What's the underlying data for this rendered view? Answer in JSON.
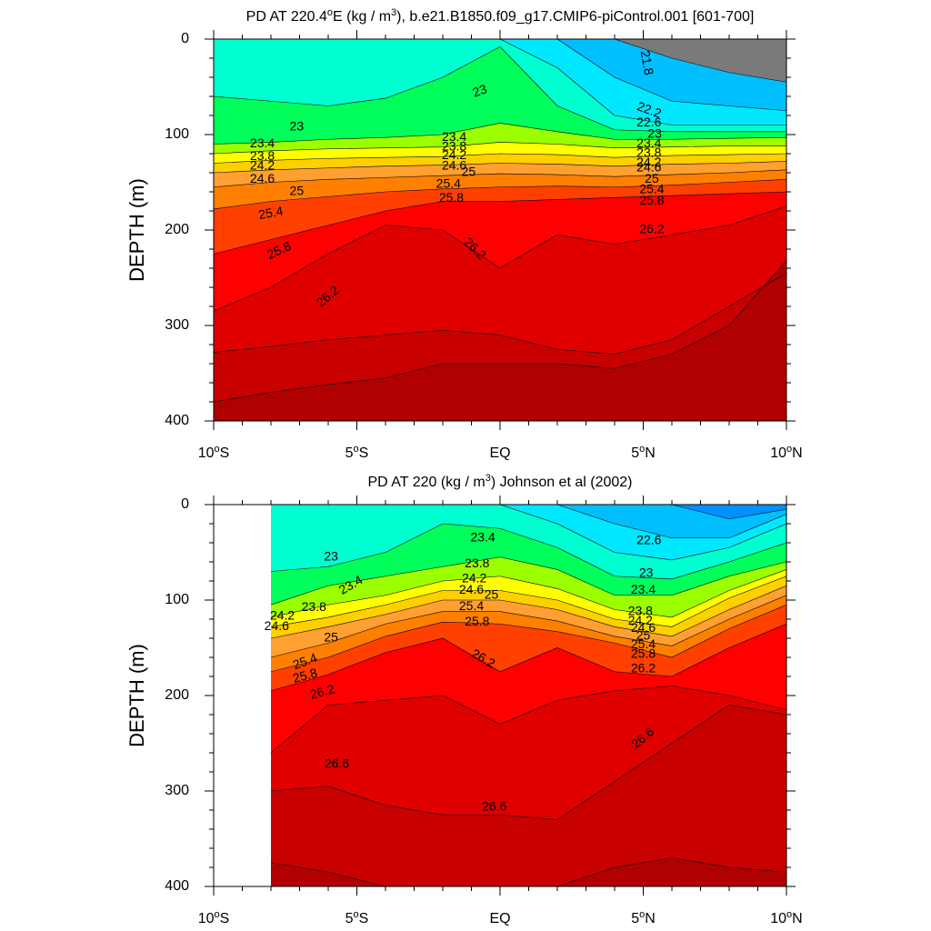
{
  "colors": {
    "scale": [
      "#7a7a7a",
      "#aaaaaa",
      "#ff00ff",
      "#c700e6",
      "#7a00e0",
      "#0000ff",
      "#0050ff",
      "#0090ff",
      "#00bfff",
      "#00e8ff",
      "#00ffd0",
      "#00ff5a",
      "#9bff00",
      "#ffff00",
      "#ffd000",
      "#ffa030",
      "#ff8000",
      "#ff4000",
      "#ff0000",
      "#e00000",
      "#c80000",
      "#b00000"
    ],
    "line": "#000000"
  },
  "chart_data": [
    {
      "type": "contour",
      "title_parts": [
        "PD AT 220.4",
        "o",
        "E (kg / m",
        "3",
        "), b.e21.B1850.f09_g17.CMIP6-piControl.001 [601-700]"
      ],
      "ylabel": "DEPTH (m)",
      "xlim": [
        -10,
        10
      ],
      "ylim": [
        400,
        0
      ],
      "xticks": [
        {
          "v": -10,
          "parts": [
            "10",
            "o",
            "S"
          ]
        },
        {
          "v": -5,
          "parts": [
            "5",
            "o",
            "S"
          ]
        },
        {
          "v": 0,
          "parts": [
            "EQ",
            "",
            ""
          ]
        },
        {
          "v": 5,
          "parts": [
            "5",
            "o",
            "N"
          ]
        },
        {
          "v": 10,
          "parts": [
            "10",
            "o",
            "N"
          ]
        }
      ],
      "yticks": [
        "0",
        "100",
        "200",
        "300",
        "400"
      ],
      "x_start": -10,
      "x_nodes": [
        -10,
        -8,
        -6,
        -4,
        -2,
        0,
        2,
        4,
        6,
        8,
        10
      ],
      "levels": [
        {
          "v": 21.8,
          "d": [
            0,
            0,
            0,
            0,
            0,
            0,
            0,
            0,
            20,
            35,
            45
          ]
        },
        {
          "v": 22.2,
          "d": [
            0,
            0,
            0,
            0,
            0,
            0,
            0,
            40,
            65,
            70,
            75
          ]
        },
        {
          "v": 22.6,
          "d": [
            0,
            0,
            0,
            0,
            0,
            0,
            30,
            80,
            90,
            90,
            90
          ]
        },
        {
          "v": 23.0,
          "d": [
            60,
            65,
            70,
            62,
            40,
            8,
            70,
            95,
            97,
            97,
            97
          ]
        },
        {
          "v": 23.4,
          "d": [
            110,
            108,
            105,
            103,
            100,
            88,
            97,
            105,
            105,
            104,
            103
          ]
        },
        {
          "v": 23.8,
          "d": [
            120,
            117,
            115,
            114,
            113,
            108,
            110,
            114,
            113,
            112,
            112
          ]
        },
        {
          "v": 24.2,
          "d": [
            130,
            127,
            125,
            124,
            123,
            120,
            121,
            124,
            122,
            121,
            120
          ]
        },
        {
          "v": 24.6,
          "d": [
            140,
            137,
            135,
            133,
            132,
            130,
            131,
            133,
            131,
            130,
            128
          ]
        },
        {
          "v": 25.0,
          "d": [
            155,
            150,
            147,
            145,
            143,
            141,
            142,
            144,
            142,
            140,
            137
          ]
        },
        {
          "v": 25.4,
          "d": [
            178,
            170,
            165,
            160,
            157,
            155,
            154,
            155,
            153,
            150,
            147
          ]
        },
        {
          "v": 25.8,
          "d": [
            225,
            210,
            195,
            180,
            170,
            170,
            168,
            166,
            164,
            162,
            160
          ]
        },
        {
          "v": 26.2,
          "d": [
            285,
            260,
            225,
            195,
            200,
            240,
            205,
            215,
            205,
            195,
            175
          ]
        },
        {
          "v": 26.6,
          "d": [
            328,
            322,
            315,
            310,
            305,
            310,
            325,
            330,
            315,
            280,
            245
          ]
        },
        {
          "v": 27.0,
          "d": [
            380,
            370,
            362,
            355,
            340,
            340,
            340,
            345,
            330,
            300,
            232
          ]
        }
      ],
      "labels": [
        {
          "t": "21.8",
          "x": 5.1,
          "y": 25,
          "a": 80
        },
        {
          "t": "22.2",
          "x": 5.2,
          "y": 75,
          "a": 20
        },
        {
          "t": "22.6",
          "x": 5.2,
          "y": 88,
          "a": 0
        },
        {
          "t": "23",
          "x": -7.1,
          "y": 92,
          "a": 0
        },
        {
          "t": "23",
          "x": -0.7,
          "y": 55,
          "a": -20
        },
        {
          "t": "23",
          "x": 5.4,
          "y": 100,
          "a": 0
        },
        {
          "t": "23.4",
          "x": -8.3,
          "y": 110,
          "a": 0
        },
        {
          "t": "23.4",
          "x": -1.6,
          "y": 103,
          "a": 0
        },
        {
          "t": "23.4",
          "x": 5.2,
          "y": 110,
          "a": 0
        },
        {
          "t": "23.8",
          "x": -8.3,
          "y": 123,
          "a": 0
        },
        {
          "t": "23.8",
          "x": -1.6,
          "y": 113,
          "a": 0
        },
        {
          "t": "23.8",
          "x": 5.2,
          "y": 120,
          "a": 0
        },
        {
          "t": "24.2",
          "x": -8.3,
          "y": 133,
          "a": 0
        },
        {
          "t": "24.2",
          "x": -1.6,
          "y": 122,
          "a": 0
        },
        {
          "t": "24.2",
          "x": 5.2,
          "y": 130,
          "a": 0
        },
        {
          "t": "24.6",
          "x": -8.3,
          "y": 147,
          "a": 0
        },
        {
          "t": "24.6",
          "x": -1.6,
          "y": 133,
          "a": 0
        },
        {
          "t": "24.6",
          "x": 5.2,
          "y": 135,
          "a": 0
        },
        {
          "t": "25",
          "x": -7.1,
          "y": 160,
          "a": 0
        },
        {
          "t": "25",
          "x": -1.1,
          "y": 140,
          "a": 0
        },
        {
          "t": "25",
          "x": 5.3,
          "y": 147,
          "a": 0
        },
        {
          "t": "25.4",
          "x": -8.0,
          "y": 183,
          "a": -10
        },
        {
          "t": "25.4",
          "x": -1.8,
          "y": 152,
          "a": 0
        },
        {
          "t": "25.4",
          "x": 5.3,
          "y": 158,
          "a": 0
        },
        {
          "t": "25.8",
          "x": -7.7,
          "y": 222,
          "a": -25
        },
        {
          "t": "25.8",
          "x": -1.7,
          "y": 167,
          "a": 0
        },
        {
          "t": "25.8",
          "x": 5.3,
          "y": 170,
          "a": 0
        },
        {
          "t": "26.2",
          "x": -6.0,
          "y": 270,
          "a": -40
        },
        {
          "t": "26.2",
          "x": -0.9,
          "y": 220,
          "a": 45
        },
        {
          "t": "26.2",
          "x": 5.3,
          "y": 200,
          "a": 0
        }
      ]
    },
    {
      "type": "contour",
      "title_parts": [
        "PD AT 220 (kg / m",
        "3",
        ") Johnson et al (2002)"
      ],
      "ylabel": "DEPTH (m)",
      "xlim": [
        -10,
        10
      ],
      "ylim": [
        400,
        0
      ],
      "xticks": [
        {
          "v": -10,
          "parts": [
            "10",
            "o",
            "S"
          ]
        },
        {
          "v": -5,
          "parts": [
            "5",
            "o",
            "S"
          ]
        },
        {
          "v": 0,
          "parts": [
            "EQ",
            "",
            ""
          ]
        },
        {
          "v": 5,
          "parts": [
            "5",
            "o",
            "N"
          ]
        },
        {
          "v": 10,
          "parts": [
            "10",
            "o",
            "N"
          ]
        }
      ],
      "yticks": [
        "0",
        "100",
        "200",
        "300",
        "400"
      ],
      "x_start": -8,
      "x_nodes": [
        -8,
        -6,
        -4,
        -2,
        0,
        2,
        4,
        6,
        8,
        10
      ],
      "levels": [
        {
          "v": 21.8,
          "d": [
            0,
            0,
            0,
            0,
            0,
            0,
            0,
            0,
            0,
            0
          ]
        },
        {
          "v": 22.2,
          "d": [
            0,
            0,
            0,
            0,
            0,
            0,
            0,
            0,
            15,
            5
          ]
        },
        {
          "v": 22.6,
          "d": [
            0,
            0,
            0,
            0,
            0,
            0,
            20,
            35,
            35,
            10
          ]
        },
        {
          "v": 23.0,
          "d": [
            0,
            0,
            0,
            0,
            0,
            20,
            50,
            58,
            45,
            20
          ]
        },
        {
          "v": 23.4,
          "d": [
            70,
            65,
            50,
            20,
            25,
            45,
            75,
            78,
            60,
            40
          ]
        },
        {
          "v": 23.8,
          "d": [
            105,
            85,
            75,
            65,
            55,
            68,
            95,
            95,
            75,
            60
          ]
        },
        {
          "v": 24.2,
          "d": [
            118,
            105,
            95,
            80,
            75,
            88,
            110,
            118,
            90,
            68
          ]
        },
        {
          "v": 24.6,
          "d": [
            128,
            118,
            105,
            90,
            90,
            100,
            120,
            128,
            98,
            75
          ]
        },
        {
          "v": 25.0,
          "d": [
            140,
            128,
            115,
            100,
            100,
            110,
            128,
            138,
            110,
            85
          ]
        },
        {
          "v": 25.4,
          "d": [
            160,
            145,
            125,
            112,
            112,
            122,
            138,
            148,
            120,
            95
          ]
        },
        {
          "v": 25.8,
          "d": [
            175,
            160,
            138,
            123,
            125,
            133,
            145,
            160,
            130,
            105
          ]
        },
        {
          "v": 26.2,
          "d": [
            195,
            178,
            155,
            140,
            175,
            150,
            175,
            180,
            150,
            125
          ]
        },
        {
          "v": 26.6,
          "d": [
            260,
            210,
            205,
            200,
            230,
            205,
            195,
            190,
            200,
            215
          ]
        },
        {
          "v": 27.0,
          "d": [
            300,
            295,
            315,
            325,
            325,
            330,
            290,
            250,
            210,
            220
          ]
        },
        {
          "v": 27.4,
          "d": [
            375,
            385,
            400,
            400,
            400,
            400,
            380,
            370,
            380,
            385
          ]
        }
      ],
      "labels": [
        {
          "t": "22.6",
          "x": 5.2,
          "y": 38,
          "a": 0
        },
        {
          "t": "23",
          "x": -5.9,
          "y": 55,
          "a": 0
        },
        {
          "t": "23",
          "x": 5.1,
          "y": 72,
          "a": 0
        },
        {
          "t": "23.4",
          "x": -5.2,
          "y": 85,
          "a": -30
        },
        {
          "t": "23.4",
          "x": -0.6,
          "y": 35,
          "a": 0
        },
        {
          "t": "23.4",
          "x": 5.0,
          "y": 90,
          "a": 0
        },
        {
          "t": "23.8",
          "x": -6.5,
          "y": 108,
          "a": 0
        },
        {
          "t": "23.8",
          "x": -0.8,
          "y": 62,
          "a": 0
        },
        {
          "t": "23.8",
          "x": 4.9,
          "y": 112,
          "a": 0
        },
        {
          "t": "24.2",
          "x": -7.6,
          "y": 117,
          "a": 0
        },
        {
          "t": "24.2",
          "x": -0.9,
          "y": 78,
          "a": 0
        },
        {
          "t": "24.2",
          "x": 4.9,
          "y": 122,
          "a": 0
        },
        {
          "t": "24.6",
          "x": -7.8,
          "y": 128,
          "a": 0
        },
        {
          "t": "24.6",
          "x": -1.0,
          "y": 90,
          "a": 0
        },
        {
          "t": "24.6",
          "x": 5.0,
          "y": 130,
          "a": 0
        },
        {
          "t": "25",
          "x": -5.9,
          "y": 140,
          "a": 0
        },
        {
          "t": "25",
          "x": -0.3,
          "y": 95,
          "a": 0
        },
        {
          "t": "25",
          "x": 5.0,
          "y": 138,
          "a": 0
        },
        {
          "t": "25.4",
          "x": -6.8,
          "y": 165,
          "a": -20
        },
        {
          "t": "25.4",
          "x": -1.0,
          "y": 107,
          "a": 0
        },
        {
          "t": "25.4",
          "x": 5.0,
          "y": 147,
          "a": 0
        },
        {
          "t": "25.8",
          "x": -6.8,
          "y": 180,
          "a": -15
        },
        {
          "t": "25.8",
          "x": -0.8,
          "y": 123,
          "a": 0
        },
        {
          "t": "25.8",
          "x": 5.0,
          "y": 157,
          "a": 0
        },
        {
          "t": "26.2",
          "x": -6.2,
          "y": 197,
          "a": -15
        },
        {
          "t": "26.2",
          "x": -0.6,
          "y": 162,
          "a": 30
        },
        {
          "t": "26.2",
          "x": 5.0,
          "y": 172,
          "a": 0
        },
        {
          "t": "26.6",
          "x": -5.7,
          "y": 272,
          "a": 0
        },
        {
          "t": "26.6",
          "x": -0.2,
          "y": 317,
          "a": 0
        },
        {
          "t": "26.6",
          "x": 5.0,
          "y": 245,
          "a": -40
        }
      ]
    }
  ]
}
